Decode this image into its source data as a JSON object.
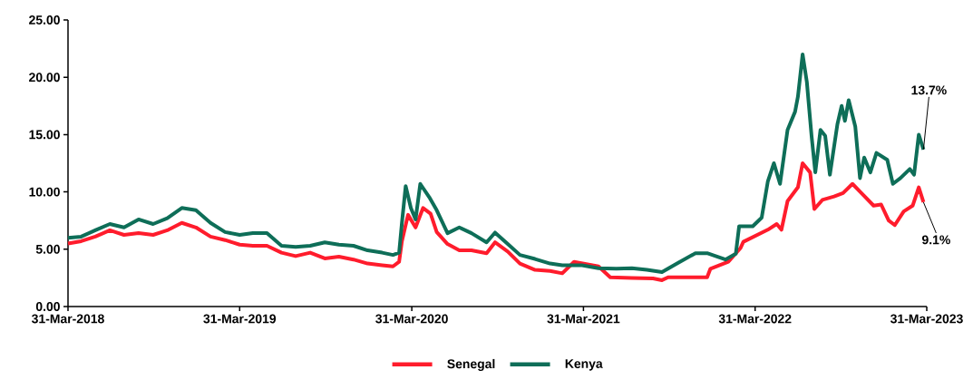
{
  "chart_data": {
    "type": "line",
    "xlim": [
      "2018-03-31",
      "2023-03-31"
    ],
    "xticks": [
      {
        "value": "2018-03-31",
        "label": "31-Mar-2018"
      },
      {
        "value": "2019-03-31",
        "label": "31-Mar-2019"
      },
      {
        "value": "2020-03-31",
        "label": "31-Mar-2020"
      },
      {
        "value": "2021-03-31",
        "label": "31-Mar-2021"
      },
      {
        "value": "2022-03-31",
        "label": "31-Mar-2022"
      },
      {
        "value": "2023-03-31",
        "label": "31-Mar-2023"
      }
    ],
    "ylim": [
      0,
      25
    ],
    "yticks": [
      {
        "value": 0,
        "label": "0.00"
      },
      {
        "value": 5,
        "label": "5.00"
      },
      {
        "value": 10,
        "label": "10.00"
      },
      {
        "value": 15,
        "label": "15.00"
      },
      {
        "value": 20,
        "label": "20.00"
      },
      {
        "value": 25,
        "label": "25.00"
      }
    ],
    "legend": "bottom",
    "series": [
      {
        "name": "Senegal",
        "color": "#ff1c2c",
        "x": [
          "2018-03-31",
          "2018-04-28",
          "2018-05-28",
          "2018-06-28",
          "2018-07-28",
          "2018-08-28",
          "2018-09-28",
          "2018-10-28",
          "2018-11-28",
          "2018-12-28",
          "2019-01-28",
          "2019-02-28",
          "2019-03-31",
          "2019-04-28",
          "2019-05-28",
          "2019-06-28",
          "2019-07-28",
          "2019-08-28",
          "2019-09-28",
          "2019-10-28",
          "2019-11-28",
          "2019-12-28",
          "2020-01-28",
          "2020-02-20",
          "2020-03-04",
          "2020-03-10",
          "2020-03-23",
          "2020-04-08",
          "2020-04-24",
          "2020-05-10",
          "2020-05-23",
          "2020-06-15",
          "2020-07-10",
          "2020-08-05",
          "2020-09-06",
          "2020-09-24",
          "2020-10-21",
          "2020-11-16",
          "2020-12-18",
          "2021-01-19",
          "2021-02-14",
          "2021-03-11",
          "2021-05-02",
          "2021-05-27",
          "2021-07-12",
          "2021-08-26",
          "2021-09-14",
          "2021-09-27",
          "2021-12-19",
          "2021-12-26",
          "2022-02-02",
          "2022-02-28",
          "2022-03-06",
          "2022-04-27",
          "2022-05-16",
          "2022-05-26",
          "2022-06-08",
          "2022-06-30",
          "2022-07-10",
          "2022-07-26",
          "2022-08-04",
          "2022-08-21",
          "2022-09-15",
          "2022-10-04",
          "2022-10-24",
          "2022-11-12",
          "2022-12-08",
          "2022-12-24",
          "2023-01-09",
          "2023-01-22",
          "2023-02-10",
          "2023-03-01",
          "2023-03-14",
          "2023-03-24"
        ],
        "values": [
          5.5,
          5.7,
          6.1,
          6.65,
          6.25,
          6.4,
          6.25,
          6.65,
          7.3,
          6.9,
          6.1,
          5.8,
          5.4,
          5.3,
          5.3,
          4.7,
          4.4,
          4.7,
          4.2,
          4.35,
          4.1,
          3.75,
          3.6,
          3.5,
          3.9,
          5.7,
          8.0,
          6.9,
          8.6,
          8.1,
          6.5,
          5.45,
          4.9,
          4.9,
          4.65,
          5.6,
          4.8,
          3.75,
          3.2,
          3.1,
          2.9,
          3.9,
          3.5,
          2.55,
          2.5,
          2.45,
          2.3,
          2.55,
          2.55,
          3.3,
          3.9,
          5.1,
          5.65,
          6.7,
          7.2,
          6.7,
          9.2,
          10.4,
          12.5,
          11.7,
          8.5,
          9.3,
          9.6,
          9.9,
          10.7,
          9.9,
          8.8,
          8.9,
          7.5,
          7.1,
          8.3,
          8.8,
          10.4,
          9.1
        ]
      },
      {
        "name": "Kenya",
        "color": "#0e6e58",
        "x": [
          "2018-03-31",
          "2018-04-28",
          "2018-05-28",
          "2018-06-28",
          "2018-07-28",
          "2018-08-28",
          "2018-09-28",
          "2018-10-28",
          "2018-11-28",
          "2018-12-28",
          "2019-01-28",
          "2019-02-28",
          "2019-03-31",
          "2019-04-28",
          "2019-05-28",
          "2019-06-28",
          "2019-07-28",
          "2019-08-28",
          "2019-09-28",
          "2019-10-28",
          "2019-11-28",
          "2019-12-28",
          "2020-01-28",
          "2020-02-20",
          "2020-03-04",
          "2020-03-10",
          "2020-03-18",
          "2020-03-29",
          "2020-04-08",
          "2020-04-18",
          "2020-05-07",
          "2020-05-23",
          "2020-06-15",
          "2020-07-10",
          "2020-08-05",
          "2020-09-06",
          "2020-09-24",
          "2020-10-21",
          "2020-11-16",
          "2020-12-18",
          "2021-01-19",
          "2021-02-14",
          "2021-03-28",
          "2021-05-02",
          "2021-06-09",
          "2021-07-12",
          "2021-08-13",
          "2021-09-14",
          "2021-10-16",
          "2021-11-24",
          "2021-12-19",
          "2022-01-27",
          "2022-02-18",
          "2022-02-25",
          "2022-03-26",
          "2022-04-14",
          "2022-04-27",
          "2022-05-10",
          "2022-05-23",
          "2022-06-08",
          "2022-06-24",
          "2022-06-30",
          "2022-07-10",
          "2022-07-19",
          "2022-07-29",
          "2022-08-06",
          "2022-08-17",
          "2022-08-27",
          "2022-09-06",
          "2022-09-22",
          "2022-10-01",
          "2022-10-08",
          "2022-10-16",
          "2022-10-30",
          "2022-11-09",
          "2022-11-18",
          "2022-12-01",
          "2022-12-14",
          "2023-01-06",
          "2023-01-18",
          "2023-02-03",
          "2023-02-23",
          "2023-03-04",
          "2023-03-14",
          "2023-03-24"
        ],
        "values": [
          6.0,
          6.1,
          6.65,
          7.2,
          6.9,
          7.6,
          7.2,
          7.7,
          8.6,
          8.4,
          7.3,
          6.5,
          6.25,
          6.4,
          6.4,
          5.3,
          5.2,
          5.3,
          5.6,
          5.4,
          5.3,
          4.9,
          4.7,
          4.5,
          4.7,
          7.3,
          10.5,
          8.6,
          7.6,
          10.7,
          9.55,
          8.4,
          6.4,
          6.9,
          6.4,
          5.6,
          6.45,
          5.45,
          4.5,
          4.15,
          3.75,
          3.6,
          3.6,
          3.35,
          3.3,
          3.35,
          3.2,
          3.0,
          3.75,
          4.65,
          4.65,
          4.1,
          4.6,
          7.0,
          7.0,
          7.75,
          10.9,
          12.5,
          10.7,
          15.4,
          17.0,
          18.3,
          22.0,
          19.6,
          14.9,
          11.7,
          15.4,
          14.9,
          11.5,
          15.9,
          17.5,
          16.2,
          18.0,
          15.7,
          11.2,
          13.0,
          11.7,
          13.4,
          12.8,
          10.7,
          11.2,
          12.0,
          11.5,
          15.0,
          13.7
        ]
      }
    ],
    "annotations": [
      {
        "text": "13.7%",
        "x": "2023-03-24",
        "y": 13.7
      },
      {
        "text": "9.1%",
        "x": "2023-03-24",
        "y": 9.1
      }
    ]
  }
}
